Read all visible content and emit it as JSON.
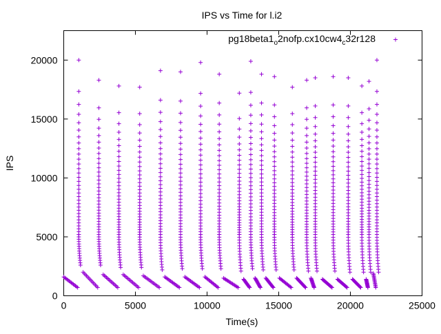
{
  "chart_data": {
    "type": "scatter",
    "title": "IPS vs Time for l.i2",
    "xlabel": "Time(s)",
    "ylabel": "IPS",
    "xlim": [
      0,
      25000
    ],
    "ylim": [
      0,
      22500
    ],
    "xticks": [
      0,
      5000,
      10000,
      15000,
      20000,
      25000
    ],
    "yticks": [
      0,
      5000,
      10000,
      15000,
      20000
    ],
    "xtick_labels": [
      "0",
      "5000",
      "10000",
      "15000",
      "20000",
      "25000"
    ],
    "ytick_labels": [
      "0",
      "5000",
      "10000",
      "15000",
      "20000"
    ],
    "grid": false,
    "legend_position": "top-right",
    "series": [
      {
        "legend_parts": [
          "pg18beta1",
          "o",
          "2nofp.cx10cw4",
          "c",
          "32r128"
        ],
        "color": "#9400d3",
        "marker": "plus",
        "spikes": [
          {
            "x": 1050,
            "peak": 20000,
            "min": 2600
          },
          {
            "x": 2450,
            "peak": 18300,
            "min": 2600
          },
          {
            "x": 3850,
            "peak": 17800,
            "min": 2400
          },
          {
            "x": 5300,
            "peak": 17700,
            "min": 2400
          },
          {
            "x": 6750,
            "peak": 19100,
            "min": 2200
          },
          {
            "x": 8150,
            "peak": 19000,
            "min": 2300
          },
          {
            "x": 9550,
            "peak": 19800,
            "min": 2300
          },
          {
            "x": 10850,
            "peak": 18800,
            "min": 2300
          },
          {
            "x": 12250,
            "peak": 17200,
            "min": 2100
          },
          {
            "x": 13050,
            "peak": 19900,
            "min": 2300
          },
          {
            "x": 13800,
            "peak": 18800,
            "min": 2200
          },
          {
            "x": 14700,
            "peak": 18600,
            "min": 2200
          },
          {
            "x": 15950,
            "peak": 17700,
            "min": 2200
          },
          {
            "x": 16950,
            "peak": 18300,
            "min": 2100
          },
          {
            "x": 17550,
            "peak": 18500,
            "min": 2100
          },
          {
            "x": 18800,
            "peak": 18600,
            "min": 2100
          },
          {
            "x": 19850,
            "peak": 18500,
            "min": 2000
          },
          {
            "x": 20800,
            "peak": 17800,
            "min": 2000
          },
          {
            "x": 21300,
            "peak": 18200,
            "min": 2000
          },
          {
            "x": 21850,
            "peak": 20000,
            "min": 2000
          }
        ],
        "tail_start": [
          {
            "x": 0,
            "y": 1600
          },
          {
            "x": 1350,
            "y": 2000
          },
          {
            "x": 2750,
            "y": 1800
          },
          {
            "x": 4150,
            "y": 1800
          },
          {
            "x": 5550,
            "y": 1700
          },
          {
            "x": 7050,
            "y": 1600
          },
          {
            "x": 8450,
            "y": 1600
          },
          {
            "x": 9850,
            "y": 1600
          },
          {
            "x": 11150,
            "y": 1500
          },
          {
            "x": 12550,
            "y": 1400
          },
          {
            "x": 13350,
            "y": 1500
          },
          {
            "x": 14100,
            "y": 1500
          },
          {
            "x": 15050,
            "y": 1500
          },
          {
            "x": 16250,
            "y": 1500
          },
          {
            "x": 17250,
            "y": 1500
          },
          {
            "x": 18050,
            "y": 1400
          },
          {
            "x": 19100,
            "y": 1400
          },
          {
            "x": 20150,
            "y": 1400
          },
          {
            "x": 21100,
            "y": 1400
          },
          {
            "x": 21600,
            "y": 1900
          }
        ]
      }
    ]
  }
}
